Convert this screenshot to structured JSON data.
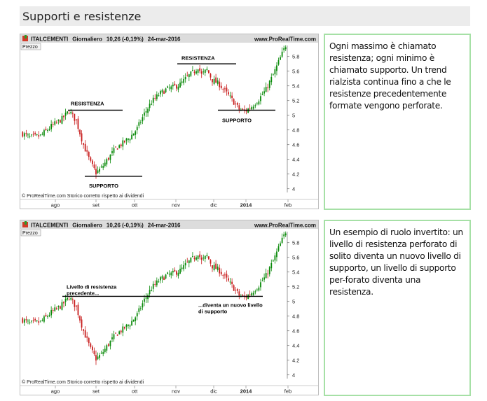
{
  "page": {
    "title": "Supporti e resistenze"
  },
  "header": {
    "ticker": "ITALCEMENTI",
    "period": "Giornaliero",
    "quote": "10,26 (-0,19%)",
    "date": "24-mar-2016",
    "site": "www.ProRealTime.com",
    "price_label": "Prezzo",
    "footer": "© ProRealTime.com  Storico corretto rispetto ai dividendi"
  },
  "colors": {
    "up": "#0a8a0a",
    "down": "#c81e1e",
    "note_border": "#a6e0a6",
    "title_bg": "#ececec",
    "header_bg": "#dcdcdc"
  },
  "notes": [
    {
      "text": "Ogni massimo è chiamato resistenza; ogni minimo è chiamato supporto. Un trend rialzista continua fino a che le resistenze precedentemente formate vengono perforate."
    },
    {
      "text": "Un esempio di ruolo invertito: un livello di resistenza perforato di solito diventa un nuovo livello di supporto, un livello di supporto per-forato diventa una resistenza."
    }
  ],
  "chart_data": [
    {
      "type": "candlestick",
      "x_ticks": [
        "ago",
        "set",
        "ott",
        "nov",
        "dic",
        "2014",
        "feb"
      ],
      "y_ticks": [
        4,
        4.2,
        4.4,
        4.6,
        4.8,
        5,
        5.2,
        5.4,
        5.6,
        5.8
      ],
      "ylim": [
        3.95,
        5.95
      ],
      "price_path": [
        [
          0,
          4.75
        ],
        [
          4,
          4.7
        ],
        [
          10,
          4.72
        ],
        [
          16,
          4.85
        ],
        [
          22,
          4.95
        ],
        [
          26,
          5.06
        ],
        [
          30,
          4.92
        ],
        [
          34,
          4.6
        ],
        [
          38,
          4.35
        ],
        [
          41,
          4.22
        ],
        [
          44,
          4.28
        ],
        [
          48,
          4.42
        ],
        [
          52,
          4.55
        ],
        [
          56,
          4.62
        ],
        [
          60,
          4.7
        ],
        [
          64,
          4.82
        ],
        [
          68,
          5.02
        ],
        [
          72,
          5.18
        ],
        [
          76,
          5.28
        ],
        [
          80,
          5.35
        ],
        [
          84,
          5.38
        ],
        [
          88,
          5.42
        ],
        [
          92,
          5.52
        ],
        [
          96,
          5.6
        ],
        [
          98,
          5.66
        ],
        [
          100,
          5.55
        ],
        [
          103,
          5.62
        ],
        [
          106,
          5.48
        ],
        [
          110,
          5.42
        ],
        [
          114,
          5.3
        ],
        [
          118,
          5.18
        ],
        [
          121,
          5.08
        ],
        [
          124,
          5.05
        ],
        [
          128,
          5.12
        ],
        [
          132,
          5.22
        ],
        [
          136,
          5.35
        ],
        [
          140,
          5.55
        ],
        [
          144,
          5.78
        ],
        [
          147,
          5.95
        ]
      ],
      "annotations": [
        {
          "label": "RESISTENZA",
          "level": 5.07
        },
        {
          "label": "SUPPORTO",
          "level": 4.17
        },
        {
          "label": "RESISTENZA",
          "level": 5.7
        },
        {
          "label": "SUPPORTO",
          "level": 5.07
        }
      ]
    },
    {
      "type": "candlestick",
      "x_ticks": [
        "ago",
        "set",
        "ott",
        "nov",
        "dic",
        "2014",
        "feb"
      ],
      "y_ticks": [
        4,
        4.2,
        4.4,
        4.6,
        4.8,
        5,
        5.2,
        5.4,
        5.6,
        5.8
      ],
      "ylim": [
        3.95,
        5.95
      ],
      "price_path": [
        [
          0,
          4.75
        ],
        [
          4,
          4.7
        ],
        [
          10,
          4.72
        ],
        [
          16,
          4.85
        ],
        [
          22,
          4.95
        ],
        [
          26,
          5.06
        ],
        [
          30,
          4.92
        ],
        [
          34,
          4.6
        ],
        [
          38,
          4.35
        ],
        [
          41,
          4.22
        ],
        [
          44,
          4.28
        ],
        [
          48,
          4.42
        ],
        [
          52,
          4.55
        ],
        [
          56,
          4.62
        ],
        [
          60,
          4.7
        ],
        [
          64,
          4.82
        ],
        [
          68,
          5.02
        ],
        [
          72,
          5.18
        ],
        [
          76,
          5.28
        ],
        [
          80,
          5.35
        ],
        [
          84,
          5.38
        ],
        [
          88,
          5.42
        ],
        [
          92,
          5.52
        ],
        [
          96,
          5.6
        ],
        [
          98,
          5.66
        ],
        [
          100,
          5.55
        ],
        [
          103,
          5.62
        ],
        [
          106,
          5.48
        ],
        [
          110,
          5.42
        ],
        [
          114,
          5.3
        ],
        [
          118,
          5.18
        ],
        [
          121,
          5.08
        ],
        [
          124,
          5.05
        ],
        [
          128,
          5.12
        ],
        [
          132,
          5.22
        ],
        [
          136,
          5.35
        ],
        [
          140,
          5.55
        ],
        [
          144,
          5.78
        ],
        [
          147,
          5.95
        ]
      ],
      "annotations": [
        {
          "label": "Livello di resistenza precedente...",
          "level": 5.07
        },
        {
          "label": "...diventa un nuovo livello di supporto",
          "level": 5.07
        }
      ]
    }
  ]
}
